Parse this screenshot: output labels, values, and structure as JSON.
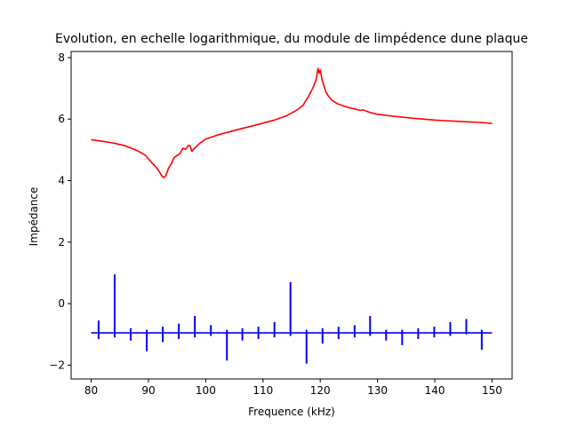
{
  "chart_data": {
    "type": "line",
    "title": "Evolution, en echelle logarithmique, du module de limpédence dune plaque",
    "xlabel": "Frequence (kHz)",
    "ylabel": "Impédance",
    "xlim": [
      76.5,
      153.5
    ],
    "ylim": [
      -2.45,
      8.2
    ],
    "xticks": [
      80,
      90,
      100,
      110,
      120,
      130,
      140,
      150
    ],
    "yticks": [
      -2,
      0,
      2,
      4,
      6,
      8
    ],
    "grid": false,
    "legend": "none",
    "series": [
      {
        "color": "#ff0000",
        "style": "line",
        "x": [
          80,
          82,
          84,
          86,
          88,
          89.5,
          90.5,
          91.5,
          92.2,
          92.6,
          93,
          93.5,
          94,
          94.5,
          95,
          95.5,
          96,
          96.5,
          97,
          97.3,
          97.6,
          98,
          99,
          100,
          102,
          104,
          106,
          108,
          110,
          112,
          114,
          116,
          117,
          118,
          118.8,
          119.3,
          119.6,
          119.8,
          120,
          120.3,
          120.6,
          121,
          121.5,
          122,
          123,
          124,
          125,
          126,
          127,
          127.5,
          128,
          129,
          130,
          132,
          134,
          136,
          138,
          140,
          142,
          144,
          146,
          148,
          150
        ],
        "values": [
          5.33,
          5.28,
          5.22,
          5.13,
          4.98,
          4.82,
          4.6,
          4.4,
          4.2,
          4.1,
          4.15,
          4.4,
          4.55,
          4.75,
          4.82,
          4.88,
          5.05,
          5.02,
          5.15,
          5.12,
          4.95,
          5.05,
          5.22,
          5.35,
          5.48,
          5.58,
          5.68,
          5.77,
          5.87,
          5.97,
          6.1,
          6.3,
          6.45,
          6.75,
          7.05,
          7.3,
          7.65,
          7.5,
          7.6,
          7.3,
          7.1,
          6.88,
          6.73,
          6.62,
          6.5,
          6.43,
          6.38,
          6.33,
          6.28,
          6.3,
          6.26,
          6.2,
          6.16,
          6.11,
          6.07,
          6.03,
          6.0,
          5.97,
          5.95,
          5.93,
          5.91,
          5.89,
          5.86
        ]
      },
      {
        "color": "#0000ff",
        "style": "baseline-with-spikes",
        "baseline": -0.95,
        "x_start": 80,
        "x_end": 150,
        "spikes": [
          {
            "x": 81.3,
            "min": -1.15,
            "max": -0.55
          },
          {
            "x": 84.1,
            "min": -1.1,
            "max": 0.95
          },
          {
            "x": 86.9,
            "min": -1.2,
            "max": -0.8
          },
          {
            "x": 89.7,
            "min": -1.55,
            "max": -0.85
          },
          {
            "x": 92.5,
            "min": -1.25,
            "max": -0.75
          },
          {
            "x": 95.3,
            "min": -1.15,
            "max": -0.65
          },
          {
            "x": 98.1,
            "min": -1.1,
            "max": -0.4
          },
          {
            "x": 100.9,
            "min": -1.05,
            "max": -0.7
          },
          {
            "x": 103.7,
            "min": -1.85,
            "max": -0.85
          },
          {
            "x": 106.4,
            "min": -1.2,
            "max": -0.8
          },
          {
            "x": 109.2,
            "min": -1.15,
            "max": -0.75
          },
          {
            "x": 112,
            "min": -1.1,
            "max": -0.6
          },
          {
            "x": 114.8,
            "min": -1.05,
            "max": 0.7
          },
          {
            "x": 117.6,
            "min": -1.95,
            "max": -0.85
          },
          {
            "x": 120.4,
            "min": -1.3,
            "max": -0.8
          },
          {
            "x": 123.2,
            "min": -1.15,
            "max": -0.75
          },
          {
            "x": 126,
            "min": -1.1,
            "max": -0.7
          },
          {
            "x": 128.7,
            "min": -1.05,
            "max": -0.4
          },
          {
            "x": 131.5,
            "min": -1.2,
            "max": -0.85
          },
          {
            "x": 134.3,
            "min": -1.35,
            "max": -0.85
          },
          {
            "x": 137.1,
            "min": -1.15,
            "max": -0.8
          },
          {
            "x": 139.9,
            "min": -1.1,
            "max": -0.75
          },
          {
            "x": 142.7,
            "min": -1.05,
            "max": -0.6
          },
          {
            "x": 145.5,
            "min": -1.0,
            "max": -0.5
          },
          {
            "x": 148.2,
            "min": -1.5,
            "max": -0.85
          }
        ]
      }
    ]
  }
}
